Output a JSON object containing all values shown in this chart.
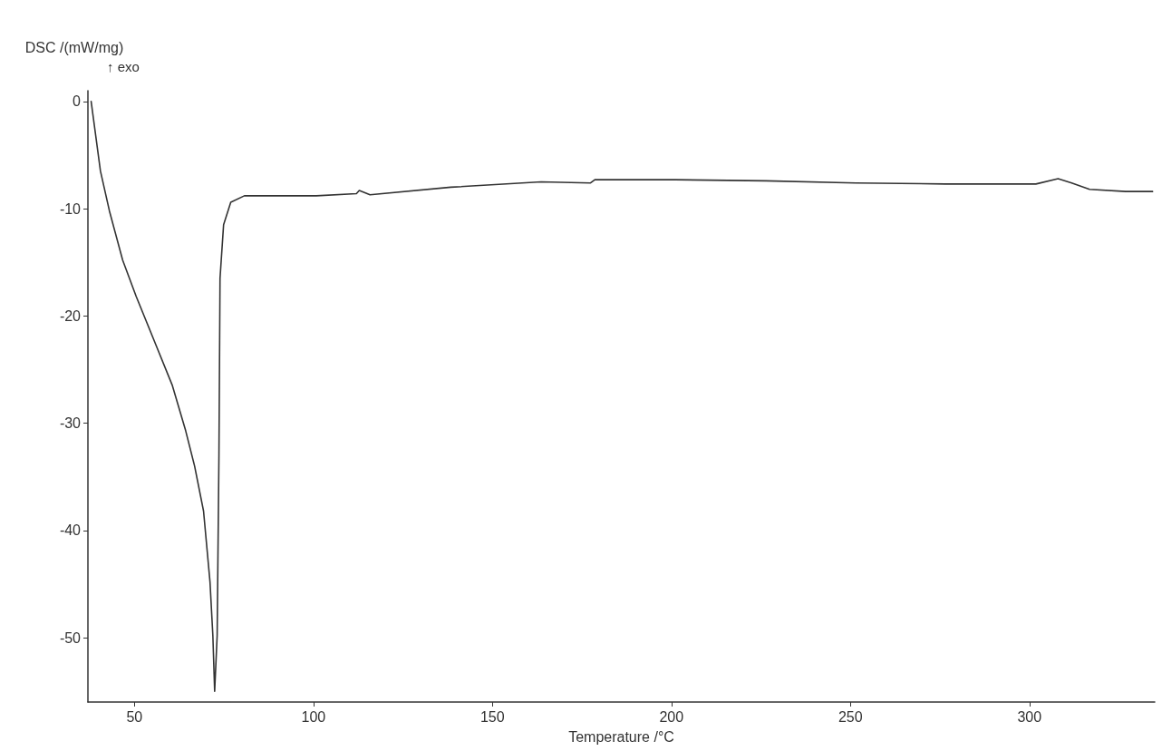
{
  "chart_data": {
    "type": "line",
    "xlabel": "Temperature /°C",
    "ylabel": "DSC /(mW/mg)",
    "annotations": [
      "↑ exo"
    ],
    "x": [
      37.9,
      40.5,
      43,
      46.7,
      50.5,
      55.5,
      60.6,
      64.3,
      66.8,
      69.3,
      71.1,
      71.9,
      72.4,
      73.1,
      73.6,
      73.9,
      74.9,
      76.9,
      80.7,
      100.8,
      112,
      112.8,
      115.8,
      138.4,
      163.6,
      177.4,
      178.6,
      201,
      226.4,
      251.5,
      276.6,
      301.8,
      308,
      311.8,
      316.8,
      326.9,
      334.4
    ],
    "series": [
      {
        "color": "#333333",
        "values": [
          0,
          -6.5,
          -10.2,
          -14.8,
          -18.2,
          -22.3,
          -26.5,
          -30.7,
          -34,
          -38.2,
          -44.8,
          -49.8,
          -55,
          -49.8,
          -33,
          -16.5,
          -11.5,
          -9.4,
          -8.8,
          -8.8,
          -8.6,
          -8.3,
          -8.7,
          -8,
          -7.5,
          -7.6,
          -7.3,
          -7.3,
          -7.4,
          -7.6,
          -7.7,
          -7.7,
          -7.2,
          -7.6,
          -8.2,
          -8.4,
          -8.4
        ]
      }
    ],
    "xlim": [
      37,
      335
    ],
    "ylim": [
      -56,
      1
    ],
    "xticks": [
      50,
      100,
      150,
      200,
      250,
      300
    ],
    "yticks": [
      0,
      -10,
      -20,
      -30,
      -40,
      -50
    ],
    "grid": false,
    "marker": "none",
    "line_style": "solid"
  }
}
